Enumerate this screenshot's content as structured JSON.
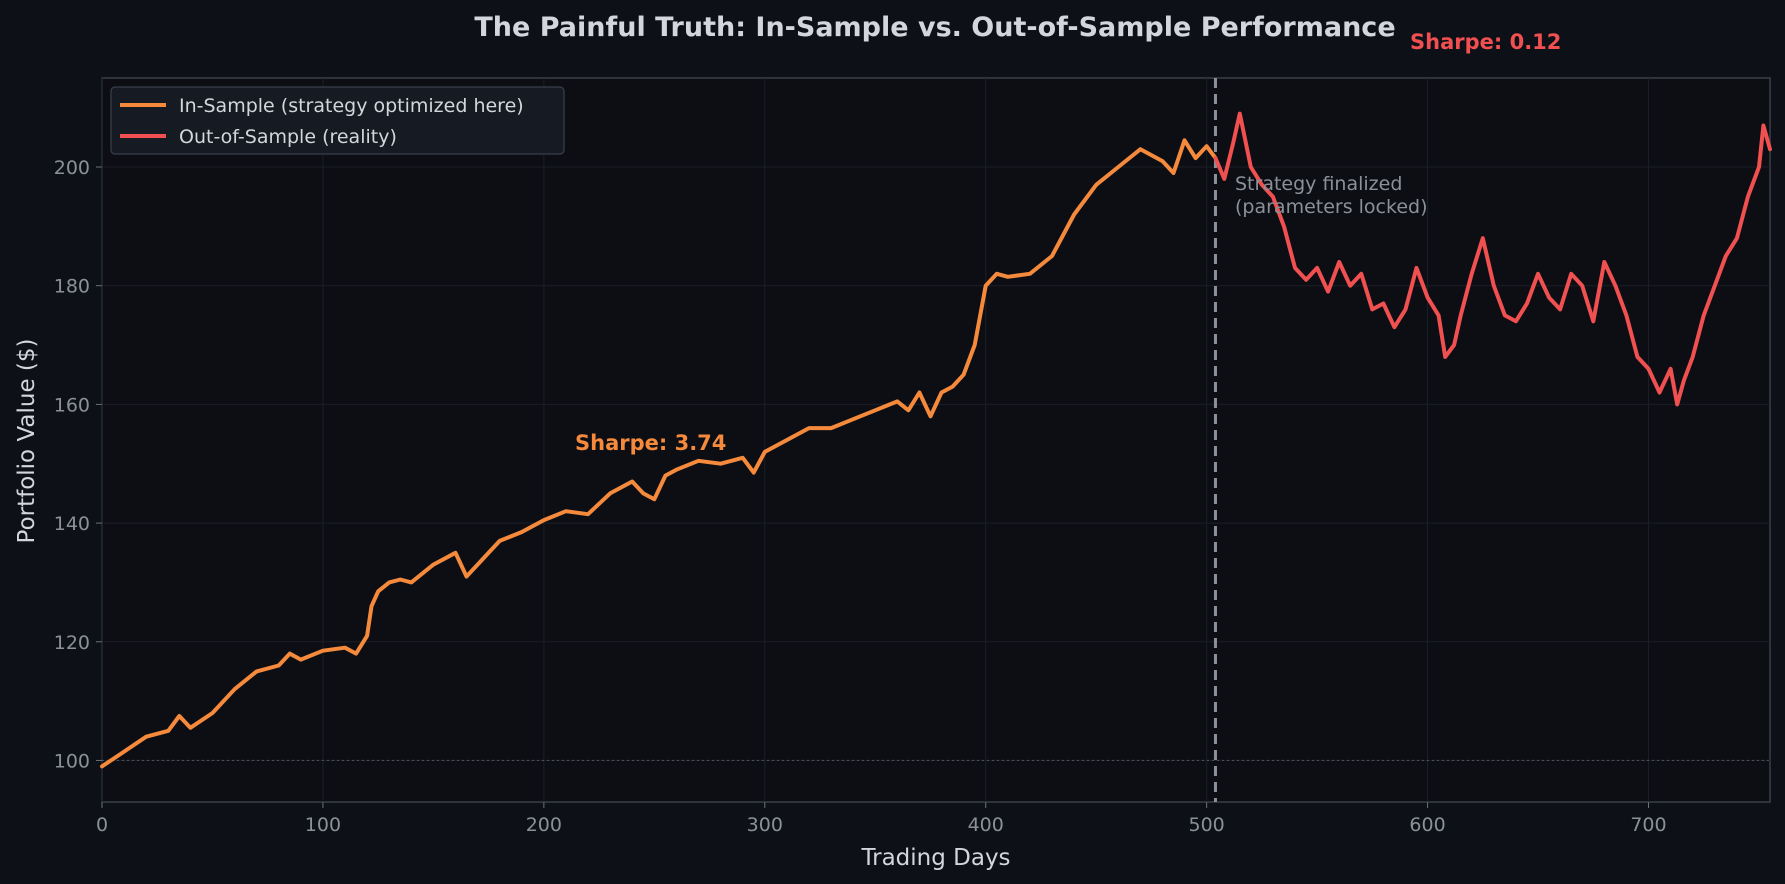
{
  "chart_data": {
    "type": "line",
    "title": "The Painful Truth: In-Sample vs. Out-of-Sample Performance",
    "xlabel": "Trading Days",
    "ylabel": "Portfolio Value ($)",
    "xlim": [
      0,
      755
    ],
    "ylim": [
      93,
      215
    ],
    "xticks": [
      0,
      100,
      200,
      300,
      400,
      500,
      600,
      700
    ],
    "yticks": [
      100,
      120,
      140,
      160,
      180,
      200
    ],
    "grid": true,
    "legend_position": "top-left",
    "baseline": 100,
    "split_day": 504,
    "split_annotation": [
      "Strategy finalized",
      "(parameters locked)"
    ],
    "series": [
      {
        "name": "In-Sample (strategy optimized here)",
        "color": "#f58a3c",
        "sharpe_label": "Sharpe: 3.74",
        "x": [
          0,
          10,
          20,
          30,
          35,
          40,
          50,
          60,
          70,
          80,
          85,
          90,
          100,
          110,
          115,
          120,
          122,
          125,
          130,
          135,
          140,
          150,
          160,
          165,
          170,
          175,
          180,
          190,
          200,
          210,
          220,
          230,
          240,
          245,
          250,
          255,
          260,
          270,
          280,
          290,
          295,
          300,
          310,
          320,
          330,
          340,
          350,
          360,
          365,
          370,
          375,
          380,
          385,
          390,
          395,
          400,
          405,
          410,
          420,
          430,
          440,
          450,
          460,
          470,
          480,
          485,
          490,
          495,
          500,
          504
        ],
        "y": [
          99,
          101.5,
          104,
          105,
          107.5,
          105.5,
          108,
          112,
          115,
          116,
          118,
          117,
          118.5,
          119,
          118,
          121,
          126,
          128.5,
          130,
          130.5,
          130,
          133,
          135,
          131,
          133,
          135,
          137,
          138.5,
          140.5,
          142,
          141.5,
          145,
          147,
          145,
          144,
          148,
          149,
          150.5,
          150,
          151,
          148.5,
          152,
          154,
          156,
          156,
          157.5,
          159,
          160.5,
          159,
          162,
          158,
          162,
          163,
          165,
          170,
          180,
          182,
          181.5,
          182,
          185,
          192,
          197,
          200,
          203,
          201,
          199,
          204.5,
          201.5,
          203.5,
          201.5
        ]
      },
      {
        "name": "Out-of-Sample (reality)",
        "color": "#f05050",
        "sharpe_label": "Sharpe: 0.12",
        "x": [
          504,
          508,
          512,
          515,
          520,
          525,
          530,
          535,
          540,
          545,
          550,
          555,
          560,
          565,
          570,
          575,
          580,
          585,
          590,
          595,
          600,
          605,
          608,
          612,
          615,
          620,
          625,
          630,
          635,
          640,
          645,
          650,
          655,
          660,
          665,
          670,
          675,
          680,
          685,
          690,
          695,
          700,
          705,
          710,
          713,
          716,
          720,
          725,
          730,
          735,
          740,
          745,
          750,
          752,
          755
        ],
        "y": [
          201.5,
          198,
          204,
          209,
          200,
          197,
          195,
          190,
          183,
          181,
          183,
          179,
          184,
          180,
          182,
          176,
          177,
          173,
          176,
          183,
          178,
          175,
          168,
          170,
          175,
          182,
          188,
          180,
          175,
          174,
          177,
          182,
          178,
          176,
          182,
          180,
          174,
          184,
          180,
          175,
          168,
          166,
          162,
          166,
          160,
          164,
          168,
          175,
          180,
          185,
          188,
          195,
          200,
          207,
          203
        ]
      }
    ]
  }
}
